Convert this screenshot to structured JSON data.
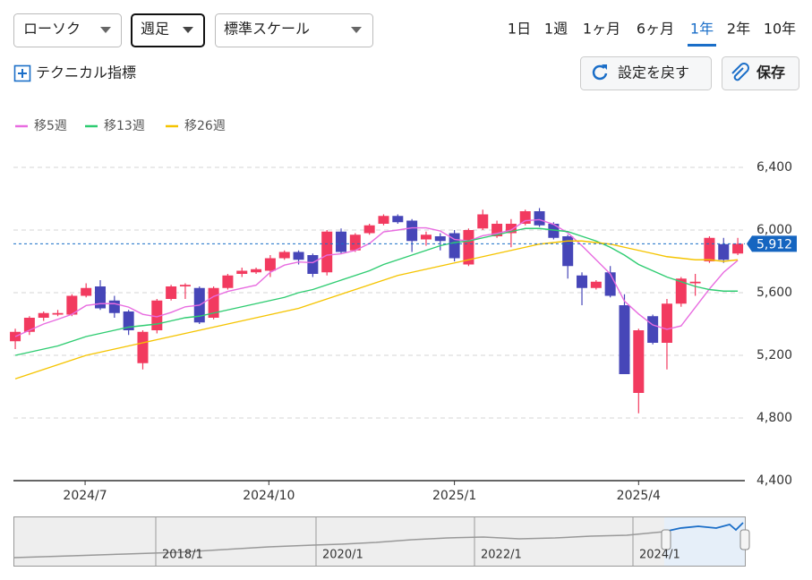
{
  "toolbar": {
    "chart_type": "ローソク",
    "period": "週足",
    "scale": "標準スケール",
    "ranges": [
      "1日",
      "1週",
      "1ヶ月",
      "6ヶ月",
      "1年",
      "2年",
      "10年"
    ],
    "active_range": 4,
    "technical": "テクニカル指標",
    "reset": "設定を戻す",
    "save": "保存"
  },
  "chart_data": {
    "type": "candlestick",
    "candles": {
      "open": [
        5290,
        5350,
        5440,
        5460,
        5460,
        5580,
        5640,
        5550,
        5480,
        5150,
        5360,
        5560,
        5640,
        5630,
        5440,
        5630,
        5720,
        5730,
        5740,
        5820,
        5860,
        5840,
        5730,
        5990,
        5870,
        5980,
        6040,
        6090,
        6060,
        5940,
        5960,
        5980,
        5780,
        6010,
        5960,
        5980,
        6040,
        6120,
        6040,
        5960,
        5710,
        5630,
        5730,
        5520,
        4960,
        5450,
        5280,
        5530,
        5660,
        5800,
        5910,
        5850
      ],
      "high": [
        5370,
        5450,
        5480,
        5490,
        5590,
        5660,
        5680,
        5580,
        5490,
        5360,
        5560,
        5650,
        5660,
        5640,
        5640,
        5720,
        5760,
        5760,
        5840,
        5870,
        5870,
        5850,
        6000,
        6010,
        5980,
        6040,
        6100,
        6100,
        6070,
        5990,
        5980,
        6000,
        6010,
        6130,
        6060,
        6070,
        6130,
        6140,
        6050,
        5970,
        5730,
        5680,
        5770,
        5590,
        5370,
        5460,
        5560,
        5700,
        5720,
        5960,
        5950,
        5950
      ],
      "low": [
        5240,
        5330,
        5420,
        5450,
        5450,
        5570,
        5490,
        5440,
        5330,
        5110,
        5340,
        5550,
        5560,
        5400,
        5430,
        5620,
        5700,
        5720,
        5700,
        5810,
        5780,
        5700,
        5710,
        5850,
        5860,
        5970,
        6030,
        6040,
        5860,
        5900,
        5870,
        5800,
        5770,
        6000,
        5950,
        5890,
        6030,
        6020,
        5940,
        5690,
        5520,
        5620,
        5570,
        5080,
        4830,
        5270,
        5110,
        5510,
        5580,
        5790,
        5790,
        5840
      ],
      "close": [
        5350,
        5440,
        5470,
        5470,
        5580,
        5630,
        5500,
        5470,
        5360,
        5350,
        5550,
        5640,
        5650,
        5410,
        5630,
        5710,
        5740,
        5750,
        5820,
        5860,
        5810,
        5720,
        5990,
        5860,
        5970,
        6030,
        6090,
        6050,
        5930,
        5970,
        5930,
        5820,
        6000,
        6100,
        6040,
        6040,
        6120,
        6030,
        5950,
        5770,
        5630,
        5670,
        5580,
        5080,
        5360,
        5280,
        5530,
        5690,
        5670,
        5950,
        5810,
        5912
      ],
      "up_color": "#f23a5f",
      "down_color": "#4646b8"
    },
    "series": [
      {
        "name": "移5週",
        "color": "#e86ce0",
        "values": [
          5320,
          5360,
          5400,
          5430,
          5462,
          5518,
          5530,
          5530,
          5508,
          5462,
          5446,
          5474,
          5510,
          5520,
          5576,
          5608,
          5628,
          5648,
          5730,
          5776,
          5796,
          5792,
          5840,
          5848,
          5870,
          5914,
          5988,
          6000,
          6014,
          6014,
          5994,
          5940,
          5930,
          5964,
          5978,
          6000,
          6060,
          6066,
          6036,
          5982,
          5900,
          5810,
          5720,
          5546,
          5464,
          5394,
          5366,
          5388,
          5506,
          5624,
          5730,
          5806
        ]
      },
      {
        "name": "移13週",
        "color": "#2ecc71",
        "values": [
          5200,
          5220,
          5240,
          5260,
          5290,
          5320,
          5340,
          5360,
          5380,
          5390,
          5400,
          5420,
          5440,
          5450,
          5470,
          5490,
          5510,
          5530,
          5550,
          5570,
          5600,
          5620,
          5650,
          5680,
          5710,
          5740,
          5780,
          5810,
          5840,
          5870,
          5900,
          5920,
          5930,
          5950,
          5970,
          5990,
          6010,
          6010,
          6000,
          5990,
          5960,
          5930,
          5890,
          5840,
          5780,
          5740,
          5700,
          5670,
          5640,
          5620,
          5610,
          5610
        ]
      },
      {
        "name": "移26週",
        "color": "#f5c400",
        "values": [
          5050,
          5080,
          5110,
          5140,
          5170,
          5200,
          5220,
          5240,
          5260,
          5280,
          5300,
          5320,
          5340,
          5360,
          5380,
          5400,
          5420,
          5440,
          5460,
          5480,
          5500,
          5530,
          5560,
          5590,
          5620,
          5650,
          5680,
          5710,
          5730,
          5750,
          5770,
          5790,
          5810,
          5830,
          5850,
          5870,
          5890,
          5910,
          5920,
          5930,
          5930,
          5920,
          5910,
          5890,
          5870,
          5850,
          5830,
          5820,
          5810,
          5810,
          5800,
          5810
        ]
      }
    ],
    "last": {
      "value": 5912,
      "label": "5,912"
    },
    "ylim": [
      4400,
      6400
    ],
    "yticks": [
      {
        "value": 4400,
        "label": "4,400"
      },
      {
        "value": 4800,
        "label": "4,800"
      },
      {
        "value": 5200,
        "label": "5,200"
      },
      {
        "value": 5600,
        "label": "5,600"
      },
      {
        "value": 6000,
        "label": "6,000"
      },
      {
        "value": 6400,
        "label": "6,400"
      }
    ],
    "xlim": [
      -0.13,
      51.5
    ],
    "xticks": [
      {
        "value": 4.93,
        "label": "2024/7"
      },
      {
        "value": 17.9,
        "label": "2024/10"
      },
      {
        "value": 31,
        "label": "2025/1"
      },
      {
        "value": 44,
        "label": "2025/4"
      }
    ],
    "grid": true,
    "navigator": {
      "labels": [
        "2018/1",
        "2020/1",
        "2022/1",
        "2024/1"
      ]
    }
  }
}
